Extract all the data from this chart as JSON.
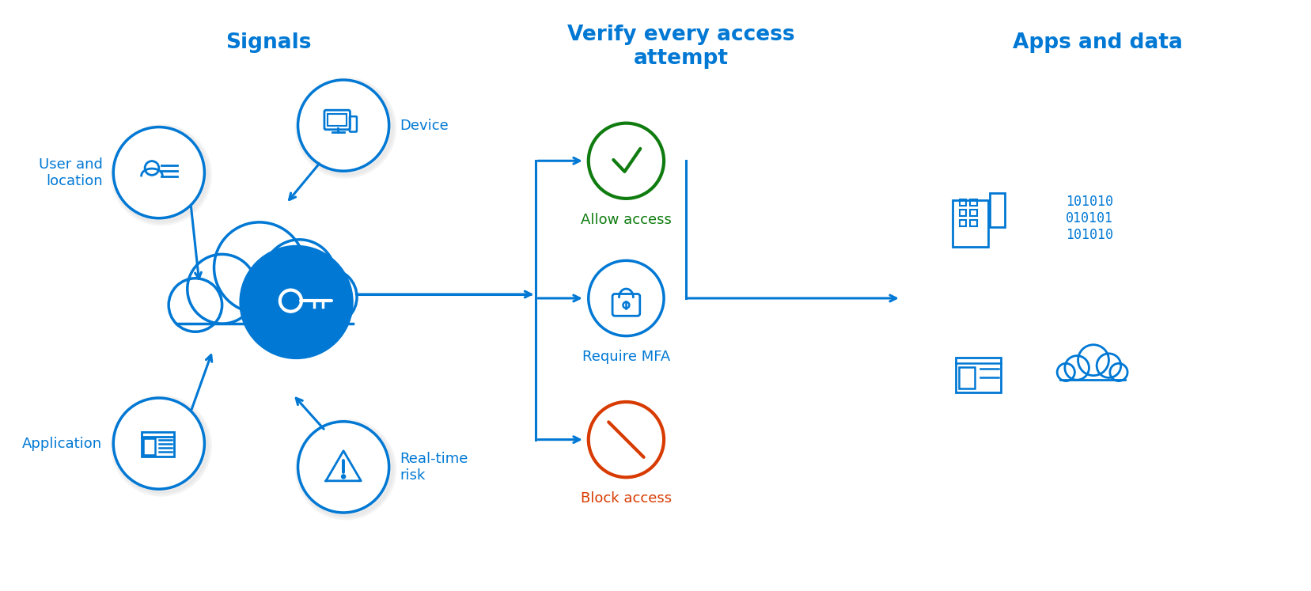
{
  "bg_color": "#ffffff",
  "blue": "#0078d4",
  "green": "#107c10",
  "orange_red": "#d83b01",
  "titles": {
    "signals": "Signals",
    "verify": "Verify every access\nattempt",
    "apps": "Apps and data"
  },
  "fig_w": 16.58,
  "fig_h": 7.47,
  "dpi": 100
}
